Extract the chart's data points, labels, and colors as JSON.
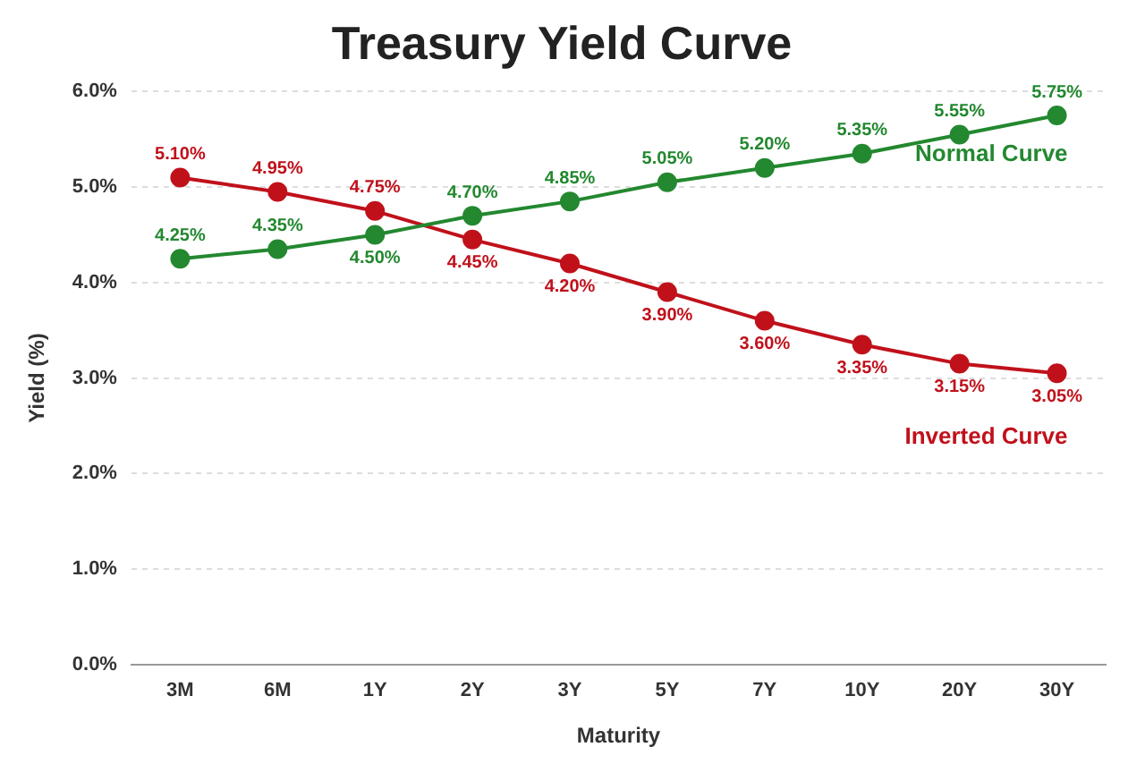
{
  "chart_data": {
    "type": "line",
    "title": "Treasury Yield Curve",
    "xlabel": "Maturity",
    "ylabel": "Yield (%)",
    "categories": [
      "3M",
      "6M",
      "1Y",
      "2Y",
      "3Y",
      "5Y",
      "7Y",
      "10Y",
      "20Y",
      "30Y"
    ],
    "series": [
      {
        "name": "Normal Curve",
        "color": "#23882f",
        "values": [
          4.25,
          4.35,
          4.5,
          4.7,
          4.85,
          5.05,
          5.2,
          5.35,
          5.55,
          5.75
        ],
        "value_labels": [
          "4.25%",
          "4.35%",
          "4.50%",
          "4.70%",
          "4.85%",
          "5.05%",
          "5.20%",
          "5.35%",
          "5.55%",
          "5.75%"
        ]
      },
      {
        "name": "Inverted Curve",
        "color": "#c0111b",
        "values": [
          5.1,
          4.95,
          4.75,
          4.45,
          4.2,
          3.9,
          3.6,
          3.35,
          3.15,
          3.05
        ],
        "value_labels": [
          "5.10%",
          "4.95%",
          "4.75%",
          "4.45%",
          "4.20%",
          "3.90%",
          "3.60%",
          "3.35%",
          "3.15%",
          "3.05%"
        ]
      }
    ],
    "ylim": [
      0,
      6
    ],
    "yticks": [
      {
        "value": 0,
        "label": "0.0%"
      },
      {
        "value": 1,
        "label": "1.0%"
      },
      {
        "value": 2,
        "label": "2.0%"
      },
      {
        "value": 3,
        "label": "3.0%"
      },
      {
        "value": 4,
        "label": "4.0%"
      },
      {
        "value": 5,
        "label": "5.0%"
      },
      {
        "value": 6,
        "label": "6.0%"
      }
    ],
    "grid": "y",
    "legend": false,
    "marker": "circle",
    "line_style": "solid"
  }
}
